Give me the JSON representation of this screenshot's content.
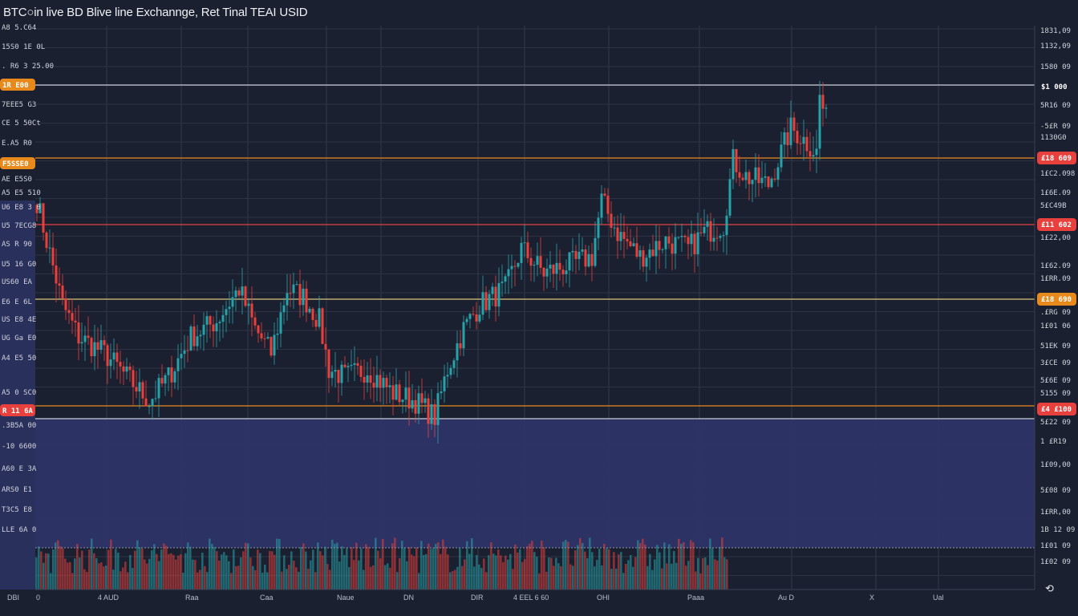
{
  "title": "BTC○in live BD Blive line Exchannge, Ret Tinal TEAI USID",
  "colors": {
    "background": "#1b2030",
    "up": "#27a2a8",
    "down": "#e8403c",
    "shade": "#2e3468",
    "orange": "#e8891c",
    "red": "#e8403c",
    "white_line": "#c9ccd4",
    "gold_line": "#d8c27a"
  },
  "chart_data": {
    "type": "candlestick",
    "title": "BTC○in live BD Blive line Exchannge, Ret Tinal TEAI USID",
    "ylim": [
      50000,
      70000
    ],
    "bar_count": 247,
    "close_anchors": [
      [
        0,
        63798
      ],
      [
        3,
        62376
      ],
      [
        8,
        60100
      ],
      [
        13,
        58961
      ],
      [
        21,
        58392
      ],
      [
        28,
        57539
      ],
      [
        35,
        56685
      ],
      [
        41,
        57539
      ],
      [
        48,
        58961
      ],
      [
        56,
        59530
      ],
      [
        63,
        60668
      ],
      [
        68,
        59245
      ],
      [
        73,
        58392
      ],
      [
        78,
        60668
      ],
      [
        83,
        60384
      ],
      [
        88,
        59530
      ],
      [
        91,
        57823
      ],
      [
        96,
        57539
      ],
      [
        103,
        57823
      ],
      [
        111,
        56970
      ],
      [
        118,
        56685
      ],
      [
        124,
        56116
      ],
      [
        128,
        57823
      ],
      [
        133,
        59245
      ],
      [
        138,
        60100
      ],
      [
        146,
        60668
      ],
      [
        151,
        62091
      ],
      [
        158,
        61238
      ],
      [
        166,
        61523
      ],
      [
        173,
        61807
      ],
      [
        176,
        63798
      ],
      [
        181,
        62660
      ],
      [
        188,
        61807
      ],
      [
        196,
        62376
      ],
      [
        203,
        62091
      ],
      [
        208,
        62660
      ],
      [
        214,
        62945
      ],
      [
        217,
        65220
      ],
      [
        221,
        64651
      ],
      [
        228,
        64367
      ],
      [
        235,
        66358
      ],
      [
        238,
        66074
      ],
      [
        243,
        65505
      ],
      [
        244,
        67497
      ],
      [
        246,
        66643
      ]
    ],
    "levels": [
      {
        "price": 67895,
        "style": "white"
      },
      {
        "price": 65306,
        "style": "orange"
      },
      {
        "price": 62945,
        "style": "red"
      },
      {
        "price": 60298,
        "style": "gold"
      },
      {
        "price": 56515,
        "style": "orange"
      },
      {
        "price": 56060,
        "style": "white"
      }
    ],
    "right_axis_labels": [
      "1831,09",
      "1132,09",
      "1580 09",
      "5R16 09",
      "-5£R 09",
      "1130G0",
      "1£C2.098",
      "1£6E.09",
      "5£C49B",
      "1£22,00",
      "1£62.09",
      "1£RR.09",
      ".£RG 09",
      "1£01 06",
      "51EK 09",
      "3£CE 09",
      "5£6E 09",
      "5155 09",
      "5£22 09",
      "1 £R19",
      "1£09,00",
      "5£08 09",
      "1£RR,00",
      "1B 12 09",
      "1£01 09",
      "1£02 09"
    ],
    "right_tags": [
      {
        "text": "$1 000",
        "kind": "dark"
      },
      {
        "text": "£18 609",
        "kind": "red"
      },
      {
        "text": "£11 602",
        "kind": "red"
      },
      {
        "text": "£18 690",
        "kind": "orange"
      },
      {
        "text": "£4 £100",
        "kind": "red"
      }
    ],
    "left_axis_labels": [
      "A8 5.C64",
      "15S0 1E 0L",
      ". R6 3 25.00",
      "7EEE5 G3",
      "CE 5 50Ct",
      "E.A5 R0",
      "AE E5S0",
      "A5 E5 510",
      "U6 E8 3 0",
      "U5 7ECG8",
      "AS R 90",
      "U5 16 G0",
      "US60 EA",
      "E6 E 6L",
      "US E8 4E",
      "UG Ga E0",
      "A4 E5 50",
      "A5 0 SC0",
      ".3B5A 00",
      "-10 6600",
      "A60 E 3A",
      "ARS0 E1",
      "T3C5 E8",
      "LLE 6A 0"
    ],
    "left_tags": [
      {
        "text": "1R E00",
        "kind": "orange"
      },
      {
        "text": "F5SSE0",
        "kind": "orange"
      },
      {
        "text": "R 11 6A",
        "kind": "red"
      }
    ],
    "x_tick_labels": [
      "DBI",
      "0",
      "4 AUD",
      "Raa",
      "Caa",
      "Naue",
      "DN",
      "DIR",
      "4 EEL 6 60",
      "OHI",
      "Paaa",
      "Au D",
      "X",
      "Ual"
    ],
    "corner_icon": "settings-icon"
  }
}
